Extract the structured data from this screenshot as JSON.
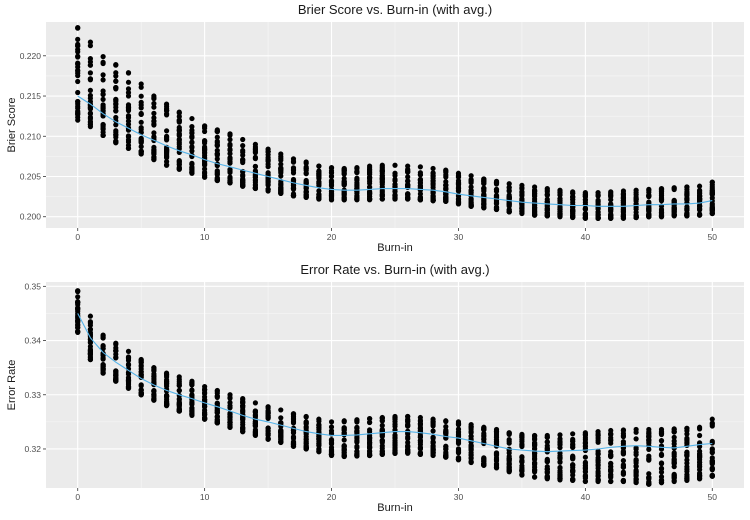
{
  "colors": {
    "points": "#000000",
    "avg_line": "#56B4E9",
    "panel": "#ebebeb"
  },
  "chart_data": [
    {
      "type": "scatter",
      "title": "Brier Score vs. Burn-in (with avg.)",
      "xlabel": "Burn-in",
      "ylabel": "Brier Score",
      "xlim": [
        -2.5,
        52.5
      ],
      "ylim": [
        0.1986,
        0.2242
      ],
      "x_ticks": [
        0,
        10,
        20,
        30,
        40,
        50
      ],
      "x_tick_labels": [
        "0",
        "10",
        "20",
        "30",
        "40",
        "50"
      ],
      "y_ticks": [
        0.2,
        0.205,
        0.21,
        0.215,
        0.22
      ],
      "y_tick_labels": [
        "0.200",
        "0.205",
        "0.210",
        "0.215",
        "0.220"
      ],
      "grid": true,
      "x": [
        0,
        1,
        2,
        3,
        4,
        5,
        6,
        7,
        8,
        9,
        10,
        11,
        12,
        13,
        14,
        15,
        16,
        17,
        18,
        19,
        20,
        21,
        22,
        23,
        24,
        25,
        26,
        27,
        28,
        29,
        30,
        31,
        32,
        33,
        34,
        35,
        36,
        37,
        38,
        39,
        40,
        41,
        42,
        43,
        44,
        45,
        46,
        47,
        48,
        49,
        50
      ],
      "series": [
        {
          "name": "avg",
          "kind": "line",
          "values": [
            0.215,
            0.214,
            0.2128,
            0.2118,
            0.211,
            0.2102,
            0.2095,
            0.2088,
            0.2082,
            0.2077,
            0.2071,
            0.2066,
            0.2062,
            0.2058,
            0.2054,
            0.205,
            0.2046,
            0.2042,
            0.2039,
            0.2036,
            0.2034,
            0.2033,
            0.2033,
            0.2034,
            0.2035,
            0.2035,
            0.2035,
            0.2034,
            0.2033,
            0.2031,
            0.2028,
            0.2026,
            0.2024,
            0.2022,
            0.202,
            0.2018,
            0.2017,
            0.2016,
            0.2015,
            0.2014,
            0.2014,
            0.2013,
            0.2013,
            0.2013,
            0.2014,
            0.2015,
            0.2015,
            0.2016,
            0.2016,
            0.2017,
            0.202
          ]
        },
        {
          "name": "runs_min",
          "kind": "points",
          "values": [
            0.212,
            0.2112,
            0.2101,
            0.2092,
            0.2085,
            0.2078,
            0.2071,
            0.2064,
            0.2059,
            0.2054,
            0.2049,
            0.2045,
            0.2042,
            0.2038,
            0.2035,
            0.2032,
            0.2029,
            0.2026,
            0.2024,
            0.2022,
            0.2021,
            0.2021,
            0.2021,
            0.2021,
            0.2022,
            0.2022,
            0.2022,
            0.2021,
            0.202,
            0.2019,
            0.2016,
            0.2013,
            0.2011,
            0.2009,
            0.2006,
            0.2004,
            0.2002,
            0.2001,
            0.2,
            0.1999,
            0.1998,
            0.1998,
            0.1998,
            0.1998,
            0.1999,
            0.2,
            0.2,
            0.2001,
            0.2001,
            0.2002,
            0.2004
          ]
        },
        {
          "name": "runs_max",
          "kind": "points",
          "values": [
            0.2235,
            0.2217,
            0.2199,
            0.2189,
            0.2179,
            0.2165,
            0.215,
            0.214,
            0.213,
            0.2122,
            0.2113,
            0.2108,
            0.2103,
            0.2096,
            0.209,
            0.2084,
            0.2078,
            0.2072,
            0.2068,
            0.2063,
            0.2061,
            0.206,
            0.2061,
            0.2063,
            0.2064,
            0.2064,
            0.2063,
            0.2062,
            0.206,
            0.2058,
            0.2054,
            0.2051,
            0.2047,
            0.2044,
            0.2041,
            0.2039,
            0.2037,
            0.2035,
            0.2033,
            0.2031,
            0.203,
            0.203,
            0.2031,
            0.2032,
            0.2033,
            0.2034,
            0.2035,
            0.2036,
            0.2037,
            0.2038,
            0.2043
          ]
        }
      ]
    },
    {
      "type": "scatter",
      "title": "Error Rate vs. Burn-in (with avg.)",
      "xlabel": "Burn-in",
      "ylabel": "Error Rate",
      "xlim": [
        -2.5,
        52.5
      ],
      "ylim": [
        0.3128,
        0.3508
      ],
      "x_ticks": [
        0,
        10,
        20,
        30,
        40,
        50
      ],
      "x_tick_labels": [
        "0",
        "10",
        "20",
        "30",
        "40",
        "50"
      ],
      "y_ticks": [
        0.32,
        0.33,
        0.34,
        0.35
      ],
      "y_tick_labels": [
        "0.32",
        "0.33",
        "0.34",
        "0.35"
      ],
      "grid": true,
      "x": [
        0,
        1,
        2,
        3,
        4,
        5,
        6,
        7,
        8,
        9,
        10,
        11,
        12,
        13,
        14,
        15,
        16,
        17,
        18,
        19,
        20,
        21,
        22,
        23,
        24,
        25,
        26,
        27,
        28,
        29,
        30,
        31,
        32,
        33,
        34,
        35,
        36,
        37,
        38,
        39,
        40,
        41,
        42,
        43,
        44,
        45,
        46,
        47,
        48,
        49,
        50
      ],
      "series": [
        {
          "name": "avg",
          "kind": "line",
          "values": [
            0.345,
            0.3405,
            0.3378,
            0.336,
            0.3345,
            0.333,
            0.3318,
            0.3308,
            0.33,
            0.3293,
            0.3285,
            0.3278,
            0.327,
            0.3262,
            0.3255,
            0.325,
            0.3244,
            0.3238,
            0.3232,
            0.3228,
            0.3225,
            0.3225,
            0.3226,
            0.3228,
            0.323,
            0.3232,
            0.3232,
            0.323,
            0.3227,
            0.3223,
            0.322,
            0.3215,
            0.321,
            0.3205,
            0.32,
            0.3198,
            0.3196,
            0.3195,
            0.3196,
            0.3197,
            0.3198,
            0.32,
            0.3203,
            0.3205,
            0.3206,
            0.3205,
            0.3203,
            0.3202,
            0.3205,
            0.3208,
            0.321
          ]
        },
        {
          "name": "runs_min",
          "kind": "points",
          "values": [
            0.3415,
            0.3365,
            0.334,
            0.3325,
            0.3312,
            0.33,
            0.329,
            0.328,
            0.327,
            0.3262,
            0.3255,
            0.3248,
            0.324,
            0.3232,
            0.3225,
            0.3218,
            0.3212,
            0.3205,
            0.32,
            0.3195,
            0.3188,
            0.3186,
            0.3187,
            0.3188,
            0.319,
            0.3192,
            0.3192,
            0.319,
            0.3188,
            0.3185,
            0.318,
            0.3175,
            0.317,
            0.3165,
            0.3158,
            0.3152,
            0.3148,
            0.3145,
            0.3143,
            0.3142,
            0.314,
            0.314,
            0.314,
            0.314,
            0.3138,
            0.3135,
            0.3138,
            0.314,
            0.3142,
            0.3145,
            0.315
          ]
        },
        {
          "name": "runs_max",
          "kind": "points",
          "values": [
            0.3492,
            0.3445,
            0.341,
            0.3395,
            0.338,
            0.3365,
            0.335,
            0.334,
            0.3333,
            0.3325,
            0.3315,
            0.3308,
            0.33,
            0.3293,
            0.3285,
            0.3278,
            0.3272,
            0.3265,
            0.326,
            0.3255,
            0.325,
            0.3252,
            0.3254,
            0.3256,
            0.3258,
            0.326,
            0.326,
            0.3258,
            0.3255,
            0.3252,
            0.325,
            0.3245,
            0.324,
            0.3236,
            0.323,
            0.3227,
            0.3225,
            0.3225,
            0.3226,
            0.3228,
            0.323,
            0.3232,
            0.3234,
            0.3235,
            0.3236,
            0.3236,
            0.3236,
            0.3237,
            0.3238,
            0.324,
            0.3255
          ]
        }
      ]
    }
  ]
}
